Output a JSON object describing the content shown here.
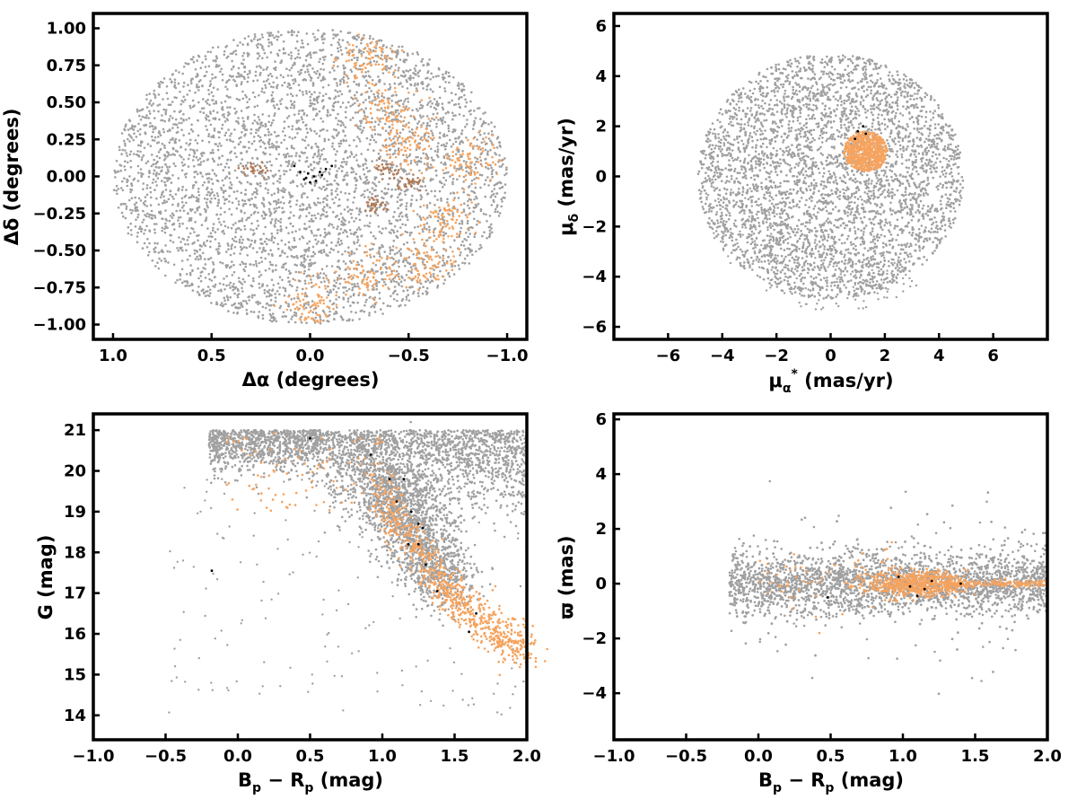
{
  "colors": {
    "field": "#a0a0a0",
    "member": "#f5a35f",
    "brown": "#b07a58",
    "marker": "#000000"
  },
  "chart_data": [
    {
      "type": "scatter",
      "xlabel": "Δα (degrees)",
      "ylabel": "Δδ (degrees)",
      "xlim": [
        1.1,
        -1.1
      ],
      "ylim": [
        -1.1,
        1.1
      ],
      "xticks": [
        1.0,
        0.5,
        0.0,
        -0.5,
        -1.0
      ],
      "xtick_labels": [
        "1.0",
        "0.5",
        "0.0",
        "−0.5",
        "−1.0"
      ],
      "yticks": [
        1.0,
        0.75,
        0.5,
        0.25,
        0.0,
        -0.25,
        -0.5,
        -0.75,
        -1.0
      ],
      "ytick_labels": [
        "1.00",
        "0.75",
        "0.50",
        "0.25",
        "0.00",
        "−0.25",
        "−0.50",
        "−0.75",
        "−1.00"
      ],
      "field_region": "disk of radius 1.0 deg centered at (0,0)",
      "member_clumps": [
        [
          -0.82,
          0.1
        ],
        [
          -0.7,
          -0.3
        ],
        [
          -0.6,
          -0.6
        ],
        [
          -0.3,
          -0.65
        ],
        [
          0.0,
          -0.85
        ],
        [
          -0.4,
          0.45
        ],
        [
          -0.3,
          0.8
        ],
        [
          -0.5,
          0.2
        ]
      ],
      "brown_clumps": [
        [
          0.28,
          0.05
        ],
        [
          -0.38,
          0.05
        ],
        [
          -0.32,
          -0.2
        ],
        [
          -0.5,
          -0.05
        ]
      ],
      "black_points": [
        [
          0.08,
          0.07
        ],
        [
          0.05,
          0.03
        ],
        [
          0.02,
          -0.01
        ],
        [
          0.0,
          -0.04
        ],
        [
          -0.02,
          0.0
        ],
        [
          -0.05,
          0.03
        ],
        [
          -0.08,
          0.05
        ],
        [
          -0.11,
          0.07
        ],
        [
          0.01,
          0.02
        ],
        [
          -0.03,
          -0.03
        ],
        [
          0.03,
          -0.02
        ],
        [
          -0.06,
          0.01
        ]
      ]
    },
    {
      "type": "scatter",
      "xlabel": "μα* (mas/yr)",
      "ylabel": "μδ (mas/yr)",
      "xlim": [
        -8,
        8
      ],
      "ylim": [
        -6.5,
        6.5
      ],
      "xticks": [
        -6,
        -4,
        -2,
        0,
        2,
        4,
        6
      ],
      "xtick_labels": [
        "−6",
        "−4",
        "−2",
        "0",
        "2",
        "4",
        "6"
      ],
      "yticks": [
        6,
        4,
        2,
        0,
        -2,
        -4,
        -6
      ],
      "ytick_labels": [
        "6",
        "4",
        "2",
        "0",
        "−2",
        "−4",
        "−6"
      ],
      "field_region": "disk of radius 5 mas/yr centered at (0,0), with sparse tail toward lower-left",
      "member_center": [
        1.3,
        1.0
      ],
      "member_radius": 0.8,
      "black_points": [
        [
          1.0,
          1.8
        ],
        [
          1.2,
          2.0
        ],
        [
          0.9,
          1.5
        ],
        [
          1.3,
          1.7
        ]
      ]
    },
    {
      "type": "scatter",
      "xlabel": "Bp − Rp (mag)",
      "ylabel": "G (mag)",
      "xlim": [
        -1.0,
        2.0
      ],
      "ylim": [
        13.4,
        21.4
      ],
      "y_inverted": false,
      "xticks": [
        -1.0,
        -0.5,
        0.0,
        0.5,
        1.0,
        1.5,
        2.0
      ],
      "xtick_labels": [
        "−1.0",
        "−0.5",
        "0.0",
        "0.5",
        "1.0",
        "1.5",
        "2.0"
      ],
      "yticks": [
        21,
        20,
        19,
        18,
        17,
        16,
        15,
        14
      ],
      "ytick_labels": [
        "21",
        "20",
        "19",
        "18",
        "17",
        "16",
        "15",
        "14"
      ],
      "member_sequence": [
        [
          1.0,
          19.5
        ],
        [
          1.1,
          18.8
        ],
        [
          1.2,
          18.3
        ],
        [
          1.3,
          17.8
        ],
        [
          1.4,
          17.3
        ],
        [
          1.5,
          16.9
        ],
        [
          1.6,
          16.6
        ],
        [
          1.7,
          16.3
        ],
        [
          1.8,
          16.0
        ],
        [
          1.9,
          15.8
        ],
        [
          2.0,
          15.6
        ]
      ],
      "black_points": [
        [
          0.5,
          20.8
        ],
        [
          0.92,
          20.4
        ],
        [
          1.05,
          19.8
        ],
        [
          1.15,
          19.8
        ],
        [
          1.1,
          19.25
        ],
        [
          1.2,
          19.0
        ],
        [
          1.25,
          18.7
        ],
        [
          1.28,
          18.6
        ],
        [
          1.18,
          18.2
        ],
        [
          1.25,
          18.2
        ],
        [
          1.3,
          17.7
        ],
        [
          1.38,
          17.05
        ],
        [
          1.65,
          16.5
        ],
        [
          1.6,
          16.05
        ],
        [
          -0.18,
          17.55
        ]
      ]
    },
    {
      "type": "scatter",
      "xlabel": "Bp − Rp (mag)",
      "ylabel": "ϖ (mas)",
      "xlim": [
        -1.0,
        2.0
      ],
      "ylim": [
        -5.7,
        6.2
      ],
      "xticks": [
        -1.0,
        -0.5,
        0.0,
        0.5,
        1.0,
        1.5,
        2.0
      ],
      "xtick_labels": [
        "−1.0",
        "−0.5",
        "0.0",
        "0.5",
        "1.0",
        "1.5",
        "2.0"
      ],
      "yticks": [
        6,
        4,
        2,
        0,
        -2,
        -4
      ],
      "ytick_labels": [
        "6",
        "4",
        "2",
        "0",
        "−2",
        "−4"
      ],
      "member_center": [
        1.1,
        0.0
      ],
      "black_points": [
        [
          0.48,
          -0.5
        ],
        [
          0.97,
          0.25
        ],
        [
          1.1,
          -0.45
        ],
        [
          1.15,
          -0.2
        ],
        [
          1.2,
          0.1
        ],
        [
          1.4,
          0.0
        ],
        [
          1.05,
          -0.1
        ]
      ]
    }
  ]
}
